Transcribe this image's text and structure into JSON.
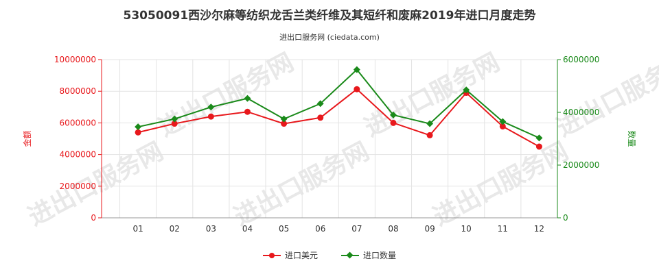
{
  "title": "53050091西沙尔麻等纺织龙舌兰类纤维及其短纤和废麻2019年进口月度走势",
  "subtitle": "进出口服务网 (ciedata.com)",
  "watermark_text": "进出口服务网",
  "colors": {
    "value": "#e8181c",
    "quantity": "#1a8a1a"
  },
  "chart_data": {
    "type": "line",
    "categories": [
      "01",
      "02",
      "03",
      "04",
      "05",
      "06",
      "07",
      "08",
      "09",
      "10",
      "11",
      "12"
    ],
    "y_left": {
      "label": "金额",
      "range": [
        0,
        10000000
      ],
      "ticks": [
        "0",
        "2000000",
        "4000000",
        "6000000",
        "8000000",
        "10000000"
      ]
    },
    "y_right": {
      "label": "数量",
      "range": [
        0,
        6000000
      ],
      "ticks": [
        "0",
        "2000000",
        "4000000",
        "6000000"
      ]
    },
    "series": [
      {
        "name": "进口美元",
        "axis": "left",
        "values": [
          5400000,
          5950000,
          6400000,
          6700000,
          5950000,
          6330000,
          8130000,
          6000000,
          5220000,
          7900000,
          5780000,
          4500000
        ]
      },
      {
        "name": "进口数量",
        "axis": "right",
        "values": [
          3450000,
          3750000,
          4200000,
          4530000,
          3750000,
          4330000,
          5620000,
          3900000,
          3570000,
          4850000,
          3650000,
          3030000
        ]
      }
    ],
    "grid": true,
    "legend_position": "bottom"
  }
}
